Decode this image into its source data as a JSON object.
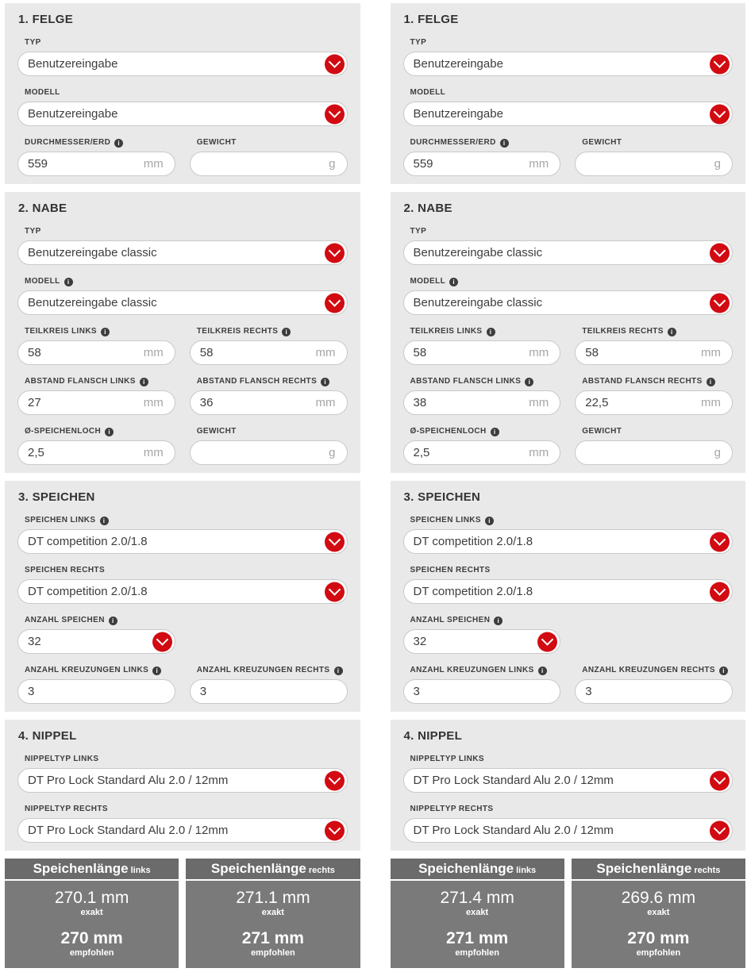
{
  "theme": {
    "accent_red": "#d20a11",
    "panel_bg": "#e9e9e9",
    "result_header_bg": "#6b6b6b",
    "result_body_bg": "#7a7a7a"
  },
  "icons": {
    "info_glyph": "i",
    "dropdown": "chevron-down-icon"
  },
  "wheels": [
    {
      "id": "left",
      "sections": [
        {
          "id": "felge",
          "title": "1. FELGE",
          "rows": [
            {
              "fields": [
                {
                  "id": "typ-felge",
                  "label": "TYP",
                  "info": false,
                  "control": "select",
                  "value": "Benutzereingabe",
                  "width": "full"
                }
              ]
            },
            {
              "fields": [
                {
                  "id": "modell-felge",
                  "label": "MODELL",
                  "info": false,
                  "control": "select",
                  "value": "Benutzereingabe",
                  "width": "full"
                }
              ]
            },
            {
              "fields": [
                {
                  "id": "durchmesser-erd",
                  "label": "DURCHMESSER/ERD",
                  "info": true,
                  "control": "text",
                  "value": "559",
                  "suffix": "mm"
                },
                {
                  "id": "gewicht-felge",
                  "label": "GEWICHT",
                  "info": false,
                  "control": "text",
                  "value": "",
                  "suffix": "g"
                }
              ]
            }
          ]
        },
        {
          "id": "nabe",
          "title": "2. NABE",
          "rows": [
            {
              "fields": [
                {
                  "id": "typ-nabe",
                  "label": "TYP",
                  "info": false,
                  "control": "select",
                  "value": "Benutzereingabe classic",
                  "width": "full"
                }
              ]
            },
            {
              "fields": [
                {
                  "id": "modell-nabe",
                  "label": "MODELL",
                  "info": true,
                  "control": "select",
                  "value": "Benutzereingabe classic",
                  "width": "full"
                }
              ]
            },
            {
              "fields": [
                {
                  "id": "teilkreis-links",
                  "label": "TEILKREIS LINKS",
                  "info": true,
                  "control": "text",
                  "value": "58",
                  "suffix": "mm"
                },
                {
                  "id": "teilkreis-rechts",
                  "label": "TEILKREIS RECHTS",
                  "info": true,
                  "control": "text",
                  "value": "58",
                  "suffix": "mm"
                }
              ]
            },
            {
              "fields": [
                {
                  "id": "abstand-flansch-links",
                  "label": "ABSTAND FLANSCH LINKS",
                  "info": true,
                  "control": "text",
                  "value": "27",
                  "suffix": "mm"
                },
                {
                  "id": "abstand-flansch-rechts",
                  "label": "ABSTAND FLANSCH RECHTS",
                  "info": true,
                  "control": "text",
                  "value": "36",
                  "suffix": "mm"
                }
              ]
            },
            {
              "fields": [
                {
                  "id": "speichenloch",
                  "label": "Ø-SPEICHENLOCH",
                  "info": true,
                  "control": "text",
                  "value": "2,5",
                  "suffix": "mm"
                },
                {
                  "id": "gewicht-nabe",
                  "label": "GEWICHT",
                  "info": false,
                  "control": "text",
                  "value": "",
                  "suffix": "g"
                }
              ]
            }
          ]
        },
        {
          "id": "speichen",
          "title": "3. SPEICHEN",
          "rows": [
            {
              "fields": [
                {
                  "id": "speichen-links",
                  "label": "SPEICHEN LINKS",
                  "info": true,
                  "control": "select",
                  "value": "DT competition 2.0/1.8",
                  "width": "full"
                }
              ]
            },
            {
              "fields": [
                {
                  "id": "speichen-rechts",
                  "label": "SPEICHEN RECHTS",
                  "info": false,
                  "control": "select",
                  "value": "DT competition 2.0/1.8",
                  "width": "full"
                }
              ]
            },
            {
              "fields": [
                {
                  "id": "anzahl-speichen",
                  "label": "ANZAHL SPEICHEN",
                  "info": true,
                  "control": "select",
                  "value": "32",
                  "width": "half"
                }
              ]
            },
            {
              "fields": [
                {
                  "id": "anzahl-kreuzungen-links",
                  "label": "ANZAHL KREUZUNGEN LINKS",
                  "info": true,
                  "control": "text",
                  "value": "3"
                },
                {
                  "id": "anzahl-kreuzungen-rechts",
                  "label": "ANZAHL KREUZUNGEN RECHTS",
                  "info": true,
                  "control": "text",
                  "value": "3"
                }
              ]
            }
          ]
        },
        {
          "id": "nippel",
          "title": "4. NIPPEL",
          "rows": [
            {
              "fields": [
                {
                  "id": "nippeltyp-links",
                  "label": "NIPPELTYP LINKS",
                  "info": false,
                  "control": "select",
                  "value": "DT Pro Lock Standard Alu 2.0 / 12mm",
                  "width": "full"
                }
              ]
            },
            {
              "fields": [
                {
                  "id": "nippeltyp-rechts",
                  "label": "NIPPELTYP RECHTS",
                  "info": false,
                  "control": "select",
                  "value": "DT Pro Lock Standard Alu 2.0 / 12mm",
                  "width": "full"
                }
              ]
            }
          ]
        }
      ],
      "results": [
        {
          "title": "Speichenlänge",
          "side": "links",
          "exact_value": "270.1 mm",
          "exact_label": "exakt",
          "recommended_value": "270 mm",
          "recommended_label": "empfohlen"
        },
        {
          "title": "Speichenlänge",
          "side": "rechts",
          "exact_value": "271.1 mm",
          "exact_label": "exakt",
          "recommended_value": "271 mm",
          "recommended_label": "empfohlen"
        }
      ]
    },
    {
      "id": "right",
      "sections": [
        {
          "id": "felge",
          "title": "1. FELGE",
          "rows": [
            {
              "fields": [
                {
                  "id": "typ-felge",
                  "label": "TYP",
                  "info": false,
                  "control": "select",
                  "value": "Benutzereingabe",
                  "width": "full"
                }
              ]
            },
            {
              "fields": [
                {
                  "id": "modell-felge",
                  "label": "MODELL",
                  "info": false,
                  "control": "select",
                  "value": "Benutzereingabe",
                  "width": "full"
                }
              ]
            },
            {
              "fields": [
                {
                  "id": "durchmesser-erd",
                  "label": "DURCHMESSER/ERD",
                  "info": true,
                  "control": "text",
                  "value": "559",
                  "suffix": "mm"
                },
                {
                  "id": "gewicht-felge",
                  "label": "GEWICHT",
                  "info": false,
                  "control": "text",
                  "value": "",
                  "suffix": "g"
                }
              ]
            }
          ]
        },
        {
          "id": "nabe",
          "title": "2. NABE",
          "rows": [
            {
              "fields": [
                {
                  "id": "typ-nabe",
                  "label": "TYP",
                  "info": false,
                  "control": "select",
                  "value": "Benutzereingabe classic",
                  "width": "full"
                }
              ]
            },
            {
              "fields": [
                {
                  "id": "modell-nabe",
                  "label": "MODELL",
                  "info": true,
                  "control": "select",
                  "value": "Benutzereingabe classic",
                  "width": "full"
                }
              ]
            },
            {
              "fields": [
                {
                  "id": "teilkreis-links",
                  "label": "TEILKREIS LINKS",
                  "info": true,
                  "control": "text",
                  "value": "58",
                  "suffix": "mm"
                },
                {
                  "id": "teilkreis-rechts",
                  "label": "TEILKREIS RECHTS",
                  "info": true,
                  "control": "text",
                  "value": "58",
                  "suffix": "mm"
                }
              ]
            },
            {
              "fields": [
                {
                  "id": "abstand-flansch-links",
                  "label": "ABSTAND FLANSCH LINKS",
                  "info": true,
                  "control": "text",
                  "value": "38",
                  "suffix": "mm"
                },
                {
                  "id": "abstand-flansch-rechts",
                  "label": "ABSTAND FLANSCH RECHTS",
                  "info": true,
                  "control": "text",
                  "value": "22,5",
                  "suffix": "mm"
                }
              ]
            },
            {
              "fields": [
                {
                  "id": "speichenloch",
                  "label": "Ø-SPEICHENLOCH",
                  "info": true,
                  "control": "text",
                  "value": "2,5",
                  "suffix": "mm"
                },
                {
                  "id": "gewicht-nabe",
                  "label": "GEWICHT",
                  "info": false,
                  "control": "text",
                  "value": "",
                  "suffix": "g"
                }
              ]
            }
          ]
        },
        {
          "id": "speichen",
          "title": "3. SPEICHEN",
          "rows": [
            {
              "fields": [
                {
                  "id": "speichen-links",
                  "label": "SPEICHEN LINKS",
                  "info": true,
                  "control": "select",
                  "value": "DT competition 2.0/1.8",
                  "width": "full"
                }
              ]
            },
            {
              "fields": [
                {
                  "id": "speichen-rechts",
                  "label": "SPEICHEN RECHTS",
                  "info": false,
                  "control": "select",
                  "value": "DT competition 2.0/1.8",
                  "width": "full"
                }
              ]
            },
            {
              "fields": [
                {
                  "id": "anzahl-speichen",
                  "label": "ANZAHL SPEICHEN",
                  "info": true,
                  "control": "select",
                  "value": "32",
                  "width": "half"
                }
              ]
            },
            {
              "fields": [
                {
                  "id": "anzahl-kreuzungen-links",
                  "label": "ANZAHL KREUZUNGEN LINKS",
                  "info": true,
                  "control": "text",
                  "value": "3"
                },
                {
                  "id": "anzahl-kreuzungen-rechts",
                  "label": "ANZAHL KREUZUNGEN RECHTS",
                  "info": true,
                  "control": "text",
                  "value": "3"
                }
              ]
            }
          ]
        },
        {
          "id": "nippel",
          "title": "4. NIPPEL",
          "rows": [
            {
              "fields": [
                {
                  "id": "nippeltyp-links",
                  "label": "NIPPELTYP LINKS",
                  "info": false,
                  "control": "select",
                  "value": "DT Pro Lock Standard Alu 2.0 / 12mm",
                  "width": "full"
                }
              ]
            },
            {
              "fields": [
                {
                  "id": "nippeltyp-rechts",
                  "label": "NIPPELTYP RECHTS",
                  "info": false,
                  "control": "select",
                  "value": "DT Pro Lock Standard Alu 2.0 / 12mm",
                  "width": "full"
                }
              ]
            }
          ]
        }
      ],
      "results": [
        {
          "title": "Speichenlänge",
          "side": "links",
          "exact_value": "271.4 mm",
          "exact_label": "exakt",
          "recommended_value": "271 mm",
          "recommended_label": "empfohlen"
        },
        {
          "title": "Speichenlänge",
          "side": "rechts",
          "exact_value": "269.6 mm",
          "exact_label": "exakt",
          "recommended_value": "270 mm",
          "recommended_label": "empfohlen"
        }
      ]
    }
  ]
}
